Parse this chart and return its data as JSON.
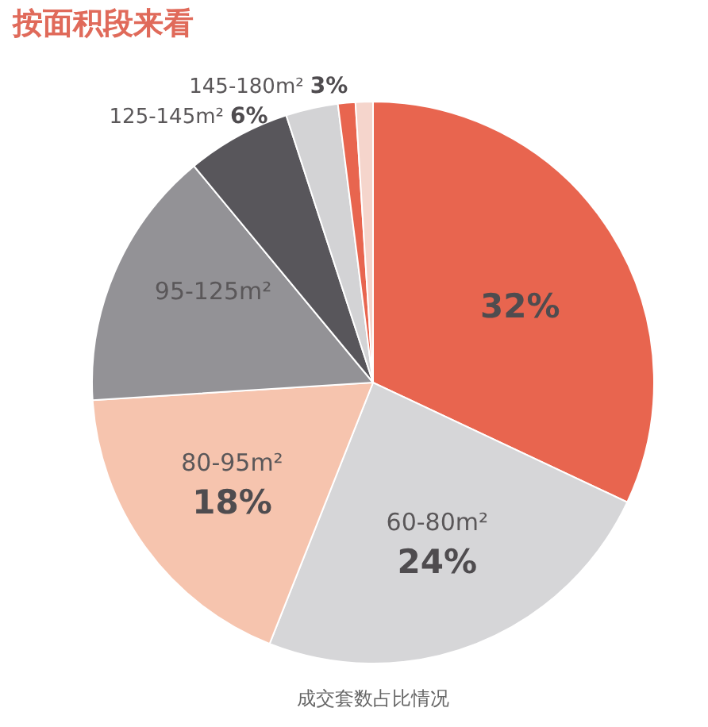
{
  "chart_data": {
    "type": "pie",
    "title": "按面积段来看",
    "categories": [
      null,
      "60-80m²",
      "80-95m²",
      "95-125m²",
      "125-145m²",
      "145-180m²",
      null,
      null
    ],
    "values": [
      32,
      24,
      18,
      15,
      6,
      3,
      1,
      1
    ],
    "colors": [
      "#e8654f",
      "#d6d6d8",
      "#f6c4ae",
      "#939296",
      "#58565b",
      "#d3d3d5",
      "#e8654f",
      "#f5d5cc"
    ],
    "value_labels": [
      "32%",
      "24%",
      "18%",
      null,
      "6%",
      "3%",
      null,
      null
    ],
    "annotations": [
      "成交套数占比情况"
    ],
    "legend": false
  }
}
